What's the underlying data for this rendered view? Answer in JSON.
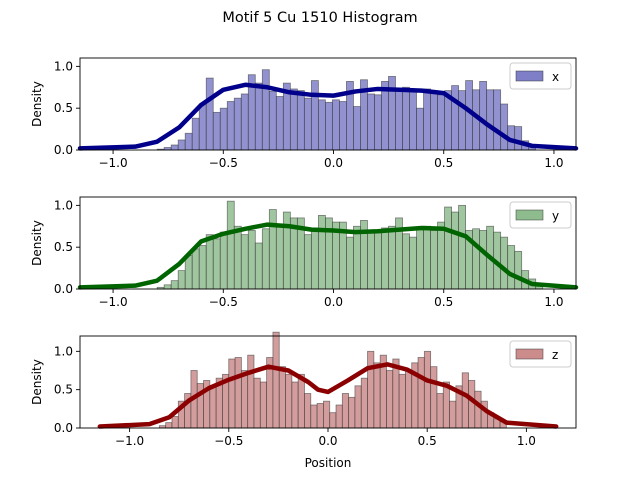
{
  "chart_data": [
    {
      "type": "bar",
      "subtype": "histogram-with-kde",
      "legend_label": "x",
      "legend_loc": "upper right",
      "ylabel": "Density",
      "xlim": [
        -1.15,
        1.1
      ],
      "ylim": [
        0,
        1.1
      ],
      "xticks": [
        "−1.0",
        "−0.5",
        "0.0",
        "0.5",
        "1.0"
      ],
      "xtick_values": [
        -1.0,
        -0.5,
        0.0,
        0.5,
        1.0
      ],
      "yticks": [
        "0.0",
        "0.5",
        "1.0"
      ],
      "ytick_values": [
        0.0,
        0.5,
        1.0
      ],
      "bar_color": "#7f7fc8",
      "kde_color": "#00008b",
      "bin_start": -0.8,
      "bin_width": 0.0318,
      "hist_values": [
        0.01,
        0.03,
        0.06,
        0.12,
        0.2,
        0.38,
        0.55,
        0.86,
        0.45,
        0.5,
        0.58,
        0.62,
        0.67,
        0.9,
        0.8,
        0.96,
        0.7,
        0.64,
        0.8,
        0.73,
        0.71,
        0.62,
        0.83,
        0.6,
        0.57,
        0.6,
        0.58,
        0.82,
        0.52,
        0.84,
        0.67,
        0.66,
        0.82,
        0.88,
        0.72,
        0.75,
        0.73,
        0.5,
        0.73,
        0.68,
        0.66,
        0.71,
        0.77,
        0.71,
        0.83,
        0.72,
        0.82,
        0.72,
        0.72,
        0.55,
        0.29,
        0.28,
        0.11,
        0.05,
        0.0
      ],
      "kde": {
        "x": [
          -1.15,
          -0.9,
          -0.8,
          -0.7,
          -0.6,
          -0.5,
          -0.4,
          -0.3,
          -0.2,
          -0.1,
          0.0,
          0.1,
          0.2,
          0.3,
          0.4,
          0.5,
          0.6,
          0.7,
          0.8,
          0.9,
          1.1
        ],
        "y": [
          0.02,
          0.04,
          0.1,
          0.27,
          0.54,
          0.72,
          0.78,
          0.75,
          0.69,
          0.66,
          0.65,
          0.7,
          0.73,
          0.72,
          0.71,
          0.68,
          0.5,
          0.3,
          0.12,
          0.05,
          0.02
        ]
      }
    },
    {
      "type": "bar",
      "subtype": "histogram-with-kde",
      "legend_label": "y",
      "legend_loc": "upper right",
      "ylabel": "Density",
      "xlim": [
        -1.15,
        1.1
      ],
      "ylim": [
        0,
        1.1
      ],
      "xticks": [
        "−1.0",
        "−0.5",
        "0.0",
        "0.5",
        "1.0"
      ],
      "xtick_values": [
        -1.0,
        -0.5,
        0.0,
        0.5,
        1.0
      ],
      "yticks": [
        "0.0",
        "0.5",
        "1.0"
      ],
      "ytick_values": [
        0.0,
        0.5,
        1.0
      ],
      "bar_color": "#8fbc8f",
      "kde_color": "#006400",
      "bin_start": -0.8,
      "bin_width": 0.0318,
      "hist_values": [
        0.02,
        0.05,
        0.1,
        0.22,
        0.4,
        0.48,
        0.52,
        0.65,
        0.6,
        0.68,
        1.05,
        0.75,
        0.65,
        0.7,
        0.55,
        0.72,
        0.95,
        0.75,
        0.92,
        0.85,
        0.85,
        0.65,
        0.73,
        0.88,
        0.85,
        0.8,
        0.8,
        0.62,
        0.75,
        0.82,
        0.7,
        0.7,
        0.73,
        0.75,
        0.85,
        0.66,
        0.62,
        0.72,
        0.75,
        0.7,
        0.8,
        0.98,
        0.92,
        1.0,
        0.7,
        0.72,
        0.7,
        0.75,
        0.68,
        0.62,
        0.52,
        0.45,
        0.22,
        0.12,
        0.05
      ],
      "kde": {
        "x": [
          -1.15,
          -0.9,
          -0.8,
          -0.7,
          -0.6,
          -0.5,
          -0.4,
          -0.3,
          -0.2,
          -0.1,
          0.0,
          0.1,
          0.2,
          0.3,
          0.4,
          0.5,
          0.6,
          0.7,
          0.8,
          0.9,
          1.1
        ],
        "y": [
          0.02,
          0.04,
          0.1,
          0.3,
          0.57,
          0.66,
          0.72,
          0.77,
          0.75,
          0.71,
          0.7,
          0.68,
          0.69,
          0.71,
          0.73,
          0.72,
          0.63,
          0.4,
          0.18,
          0.06,
          0.02
        ]
      }
    },
    {
      "type": "bar",
      "subtype": "histogram-with-kde",
      "legend_label": "z",
      "legend_loc": "upper right",
      "ylabel": "Density",
      "xlabel": "Position",
      "xlim": [
        -1.25,
        1.25
      ],
      "ylim": [
        0,
        1.2
      ],
      "xticks": [
        "−1.0",
        "−0.5",
        "0.0",
        "0.5",
        "1.0"
      ],
      "xtick_values": [
        -1.0,
        -0.5,
        0.0,
        0.5,
        1.0
      ],
      "yticks": [
        "0.0",
        "0.5",
        "1.0"
      ],
      "ytick_values": [
        0.0,
        0.5,
        1.0
      ],
      "bar_color": "#cd8c8c",
      "kde_color": "#8b0000",
      "bin_start": -0.85,
      "bin_width": 0.0318,
      "hist_values": [
        0.03,
        0.07,
        0.15,
        0.35,
        0.45,
        0.75,
        0.58,
        0.62,
        0.55,
        0.65,
        0.7,
        0.9,
        0.92,
        0.75,
        0.95,
        0.65,
        0.6,
        0.92,
        1.25,
        0.8,
        0.7,
        0.6,
        0.7,
        0.45,
        0.3,
        0.32,
        0.35,
        0.2,
        0.3,
        0.45,
        0.4,
        0.55,
        0.65,
        1.0,
        0.85,
        0.95,
        0.75,
        0.9,
        0.7,
        0.75,
        0.85,
        0.92,
        1.0,
        0.8,
        0.45,
        0.6,
        0.35,
        0.55,
        0.72,
        0.62,
        0.48,
        0.35,
        0.2,
        0.12,
        0.08
      ],
      "kde": {
        "x": [
          -1.15,
          -0.9,
          -0.8,
          -0.7,
          -0.6,
          -0.5,
          -0.4,
          -0.3,
          -0.2,
          -0.1,
          -0.05,
          0.0,
          0.1,
          0.2,
          0.3,
          0.4,
          0.5,
          0.6,
          0.7,
          0.8,
          0.9,
          1.15
        ],
        "y": [
          0.02,
          0.05,
          0.14,
          0.36,
          0.52,
          0.63,
          0.72,
          0.8,
          0.75,
          0.6,
          0.5,
          0.47,
          0.62,
          0.78,
          0.83,
          0.76,
          0.62,
          0.55,
          0.42,
          0.22,
          0.07,
          0.02
        ]
      }
    }
  ],
  "figure": {
    "title": "Motif 5 Cu 1510 Histogram",
    "xlabel": "Position"
  }
}
